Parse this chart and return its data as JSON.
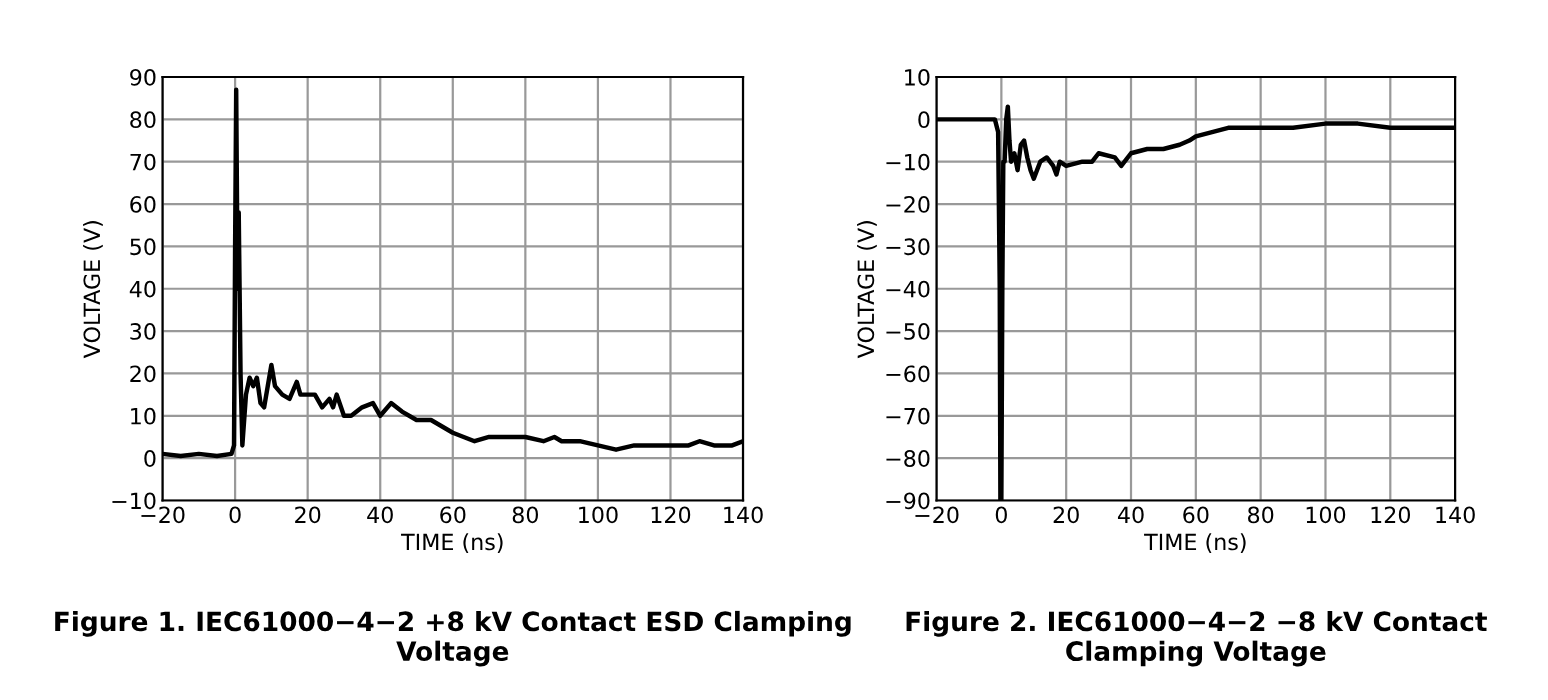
{
  "chart_data": [
    {
      "type": "line",
      "title": "Figure 1. IEC61000−4−2 +8 kV Contact ESD Clamping Voltage",
      "xlabel": "TIME (ns)",
      "ylabel": "VOLTAGE (V)",
      "series": [
        {
          "color": "#000000",
          "x": [
            -20,
            -15,
            -10,
            -5,
            -1,
            -0.3,
            0,
            0.3,
            0.7,
            1,
            1.5,
            2,
            3,
            4,
            5,
            6,
            7,
            8,
            9,
            10,
            11,
            13,
            15,
            17,
            18,
            20,
            22,
            24,
            26,
            27,
            28,
            30,
            32,
            35,
            38,
            40,
            43,
            46,
            50,
            54,
            56,
            58,
            60,
            63,
            66,
            70,
            75,
            80,
            85,
            88,
            90,
            95,
            100,
            105,
            110,
            115,
            120,
            125,
            128,
            132,
            137,
            140
          ],
          "values": [
            1,
            0.5,
            1,
            0.5,
            1,
            3,
            50,
            87,
            40,
            58,
            20,
            3,
            15,
            19,
            17,
            19,
            13,
            12,
            17,
            22,
            17,
            15,
            14,
            18,
            15,
            15,
            15,
            12,
            14,
            12,
            15,
            10,
            10,
            12,
            13,
            10,
            13,
            11,
            9,
            9,
            8,
            7,
            6,
            5,
            4,
            5,
            5,
            5,
            4,
            5,
            4,
            4,
            3,
            2,
            3,
            3,
            3,
            3,
            4,
            3,
            3,
            4
          ]
        }
      ],
      "xlim": [
        -20,
        140
      ],
      "xticks": [
        -20,
        0,
        20,
        40,
        60,
        80,
        100,
        120,
        140
      ],
      "ylim": [
        -10,
        90
      ],
      "yticks": [
        -10,
        0,
        10,
        20,
        30,
        40,
        50,
        60,
        70,
        80,
        90
      ],
      "grid": true
    },
    {
      "type": "line",
      "title": "Figure 2. IEC61000−4−2 −8 kV Contact Clamping Voltage",
      "xlabel": "TIME (ns)",
      "ylabel": "VOLTAGE (V)",
      "series": [
        {
          "color": "#000000",
          "x": [
            -20,
            -10,
            -5,
            -2,
            -1,
            -0.5,
            -0.3,
            0,
            0.3,
            0.6,
            1,
            1.5,
            2,
            2.5,
            3,
            4,
            5,
            6,
            7,
            8,
            9,
            10,
            12,
            14,
            16,
            17,
            18,
            20,
            25,
            28,
            30,
            35,
            37,
            40,
            45,
            50,
            55,
            58,
            60,
            65,
            70,
            80,
            90,
            100,
            110,
            120,
            130,
            140
          ],
          "values": [
            0,
            0,
            0,
            0,
            -3,
            -40,
            -90,
            -90,
            -40,
            -10,
            -10,
            0,
            3,
            -5,
            -10,
            -8,
            -12,
            -6,
            -5,
            -9,
            -12,
            -14,
            -10,
            -9,
            -11,
            -13,
            -10,
            -11,
            -10,
            -10,
            -8,
            -9,
            -11,
            -8,
            -7,
            -7,
            -6,
            -5,
            -4,
            -3,
            -2,
            -2,
            -2,
            -1,
            -1,
            -2,
            -2,
            -2
          ]
        }
      ],
      "xlim": [
        -20,
        140
      ],
      "xticks": [
        -20,
        0,
        20,
        40,
        60,
        80,
        100,
        120,
        140
      ],
      "ylim": [
        -90,
        10
      ],
      "yticks": [
        -90,
        -80,
        -70,
        -60,
        -50,
        -40,
        -30,
        -20,
        -10,
        0,
        10
      ],
      "grid": true
    }
  ]
}
